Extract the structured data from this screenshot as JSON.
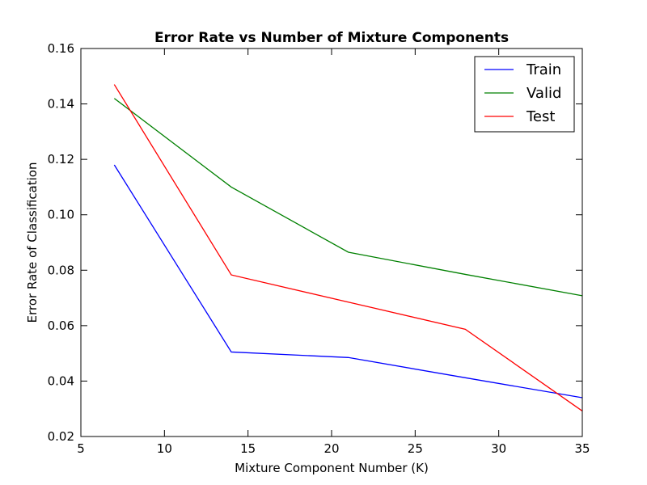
{
  "chart_data": {
    "type": "line",
    "title": "Error Rate vs Number of Mixture Components",
    "xlabel": "Mixture Component Number (K)",
    "ylabel": "Error Rate of Classification",
    "xlim": [
      5,
      35
    ],
    "ylim": [
      0.02,
      0.16
    ],
    "xticks": [
      5,
      10,
      15,
      20,
      25,
      30,
      35
    ],
    "yticks": [
      0.02,
      0.04,
      0.06,
      0.08,
      0.1,
      0.12,
      0.14,
      0.16
    ],
    "xtick_labels": [
      "5",
      "10",
      "15",
      "20",
      "25",
      "30",
      "35"
    ],
    "ytick_labels": [
      "0.02",
      "0.04",
      "0.06",
      "0.08",
      "0.10",
      "0.12",
      "0.14",
      "0.16"
    ],
    "x": [
      7,
      14,
      21,
      28,
      35
    ],
    "series": [
      {
        "name": "Train",
        "color": "#0000ff",
        "values": [
          0.118,
          0.0505,
          0.0485,
          0.0412,
          0.034
        ]
      },
      {
        "name": "Valid",
        "color": "#008000",
        "values": [
          0.142,
          0.11,
          0.0865,
          0.0785,
          0.0708
        ]
      },
      {
        "name": "Test",
        "color": "#ff0000",
        "values": [
          0.147,
          0.0783,
          0.0685,
          0.0587,
          0.0292
        ]
      }
    ],
    "grid": false,
    "legend": "top-right"
  }
}
